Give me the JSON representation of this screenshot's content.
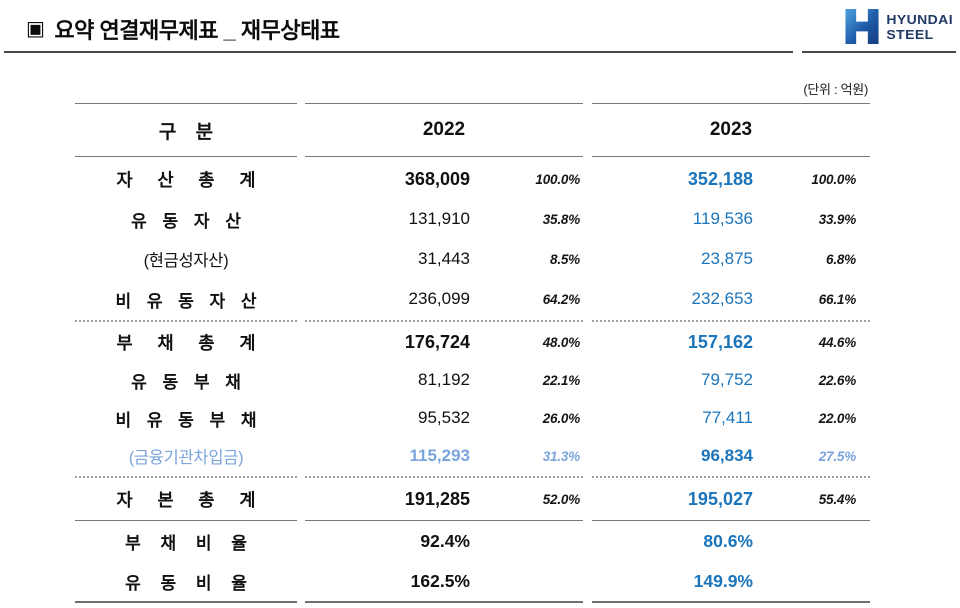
{
  "page": {
    "bullet": "▣",
    "title": "요약 연결재무제표 _ 재무상태표",
    "unit_note": "(단위 : 억원)"
  },
  "logo": {
    "brand_line1": "HYUNDAI",
    "brand_line2": "STEEL"
  },
  "table": {
    "headers": {
      "category": "구 분",
      "year1": "2022",
      "year2": "2023"
    },
    "rows": [
      {
        "section": "assets",
        "style": "rt",
        "label": "자 산 총 계",
        "v2022": "368,009",
        "p2022": "100.0%",
        "v2023": "352,188",
        "p2023": "100.0%"
      },
      {
        "section": "assets",
        "style": "rs",
        "label": "유 동 자 산",
        "v2022": "131,910",
        "p2022": "35.8%",
        "v2023": "119,536",
        "p2023": "33.9%"
      },
      {
        "section": "assets",
        "style": "rp",
        "label": "(현금성자산)",
        "v2022": "31,443",
        "p2022": "8.5%",
        "v2023": "23,875",
        "p2023": "6.8%"
      },
      {
        "section": "assets",
        "style": "rs",
        "label": "비 유 동 자 산",
        "v2022": "236,099",
        "p2022": "64.2%",
        "v2023": "232,653",
        "p2023": "66.1%"
      },
      {
        "section": "liabilities",
        "style": "rt",
        "label": "부 채 총 계",
        "v2022": "176,724",
        "p2022": "48.0%",
        "v2023": "157,162",
        "p2023": "44.6%"
      },
      {
        "section": "liabilities",
        "style": "rs",
        "label": "유 동 부 채",
        "v2022": "81,192",
        "p2022": "22.1%",
        "v2023": "79,752",
        "p2023": "22.6%"
      },
      {
        "section": "liabilities",
        "style": "rs",
        "label": "비 유 동 부 채",
        "v2022": "95,532",
        "p2022": "26.0%",
        "v2023": "77,411",
        "p2023": "22.0%"
      },
      {
        "section": "liabilities",
        "style": "rl",
        "label": "(금융기관차입금)",
        "v2022": "115,293",
        "p2022": "31.3%",
        "v2023": "96,834",
        "p2023": "27.5%"
      },
      {
        "section": "equity",
        "style": "rt",
        "label": "자 본 총 계",
        "v2022": "191,285",
        "p2022": "52.0%",
        "v2023": "195,027",
        "p2023": "55.4%"
      }
    ],
    "ratio_rows": [
      {
        "style": "rr",
        "label": "부 채 비 율",
        "v2022": "92.4%",
        "v2023": "80.6%"
      },
      {
        "style": "rr",
        "label": "유 동 비 율",
        "v2022": "162.5%",
        "v2023": "149.9%"
      }
    ]
  },
  "colors": {
    "accent_blue": "#1B75BC",
    "light_blue": "#7BA4DB",
    "logo_navy": "#223A66"
  }
}
